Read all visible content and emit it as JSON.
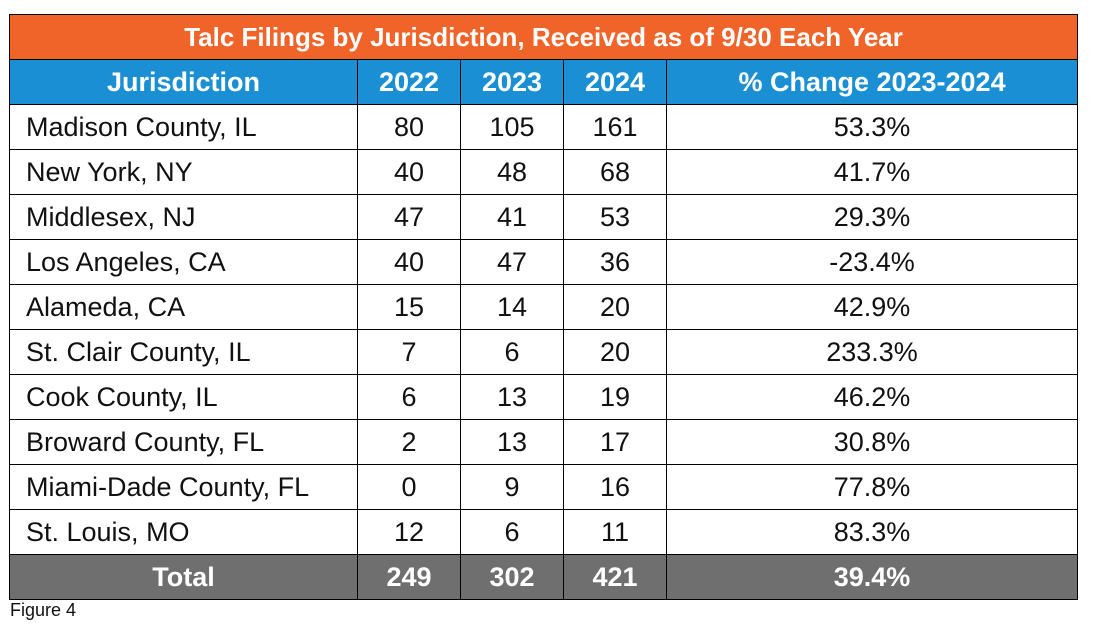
{
  "chart_data": {
    "type": "table",
    "title": "Talc Filings by Jurisdiction, Received as of 9/30 Each Year",
    "columns": [
      "Jurisdiction",
      "2022",
      "2023",
      "2024",
      "% Change 2023-2024"
    ],
    "rows": [
      [
        "Madison County, IL",
        "80",
        "105",
        "161",
        "53.3%"
      ],
      [
        "New York, NY",
        "40",
        "48",
        "68",
        "41.7%"
      ],
      [
        "Middlesex, NJ",
        "47",
        "41",
        "53",
        "29.3%"
      ],
      [
        "Los Angeles, CA",
        "40",
        "47",
        "36",
        "-23.4%"
      ],
      [
        "Alameda, CA",
        "15",
        "14",
        "20",
        "42.9%"
      ],
      [
        "St. Clair County, IL",
        "7",
        "6",
        "20",
        "233.3%"
      ],
      [
        "Cook County, IL",
        "6",
        "13",
        "19",
        "46.2%"
      ],
      [
        "Broward County, FL",
        "2",
        "13",
        "17",
        "30.8%"
      ],
      [
        "Miami-Dade County, FL",
        "0",
        "9",
        "16",
        "77.8%"
      ],
      [
        "St. Louis, MO",
        "12",
        "6",
        "11",
        "83.3%"
      ]
    ],
    "total": [
      "Total",
      "249",
      "302",
      "421",
      "39.4%"
    ],
    "colors": {
      "title_bg": "#f0642a",
      "header_bg": "#1a8fd4",
      "total_bg": "#6f6f6f"
    }
  },
  "caption": "Figure 4"
}
